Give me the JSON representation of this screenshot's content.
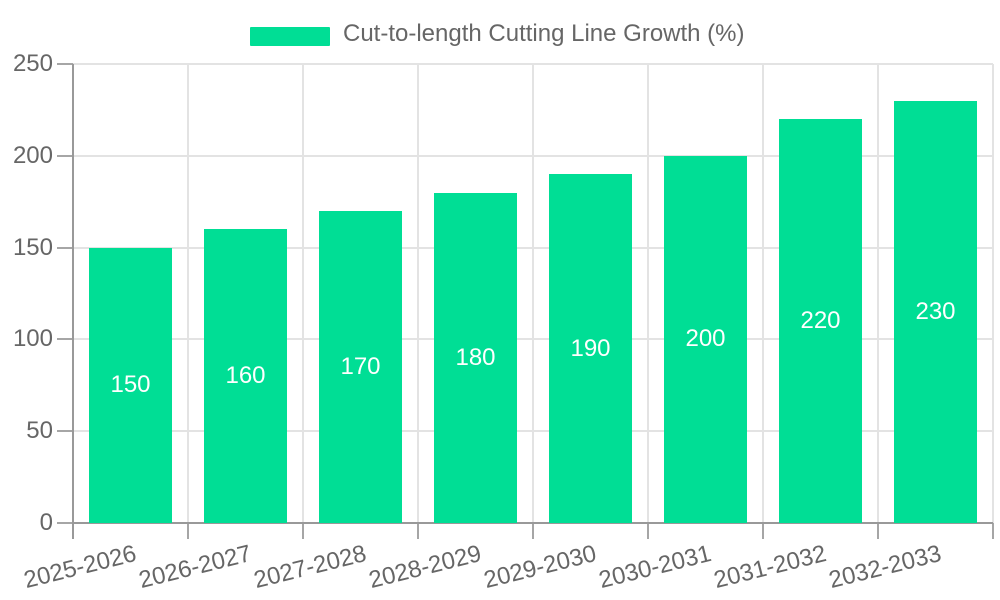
{
  "chart_data": {
    "type": "bar",
    "series_name": "Cut-to-length Cutting Line Growth (%)",
    "categories": [
      "2025-2026",
      "2026-2027",
      "2027-2028",
      "2028-2029",
      "2029-2030",
      "2030-2031",
      "2031-2032",
      "2032-2033"
    ],
    "values": [
      150,
      160,
      170,
      180,
      190,
      200,
      220,
      230
    ],
    "title": "",
    "xlabel": "",
    "ylabel": "",
    "ylim": [
      0,
      250
    ],
    "yticks": [
      0,
      50,
      100,
      150,
      200,
      250
    ],
    "grid": true,
    "legend_position": "top-center",
    "bar_value_labels_visible": true,
    "colors": {
      "bar": "#00DE95",
      "bar_label": "#FFFFFF",
      "grid": "#E3E3E3",
      "axis": "#999999",
      "tick": "#A6A6A6",
      "tick_label": "#666666",
      "legend_text": "#666666",
      "background": "#FFFFFF"
    }
  }
}
